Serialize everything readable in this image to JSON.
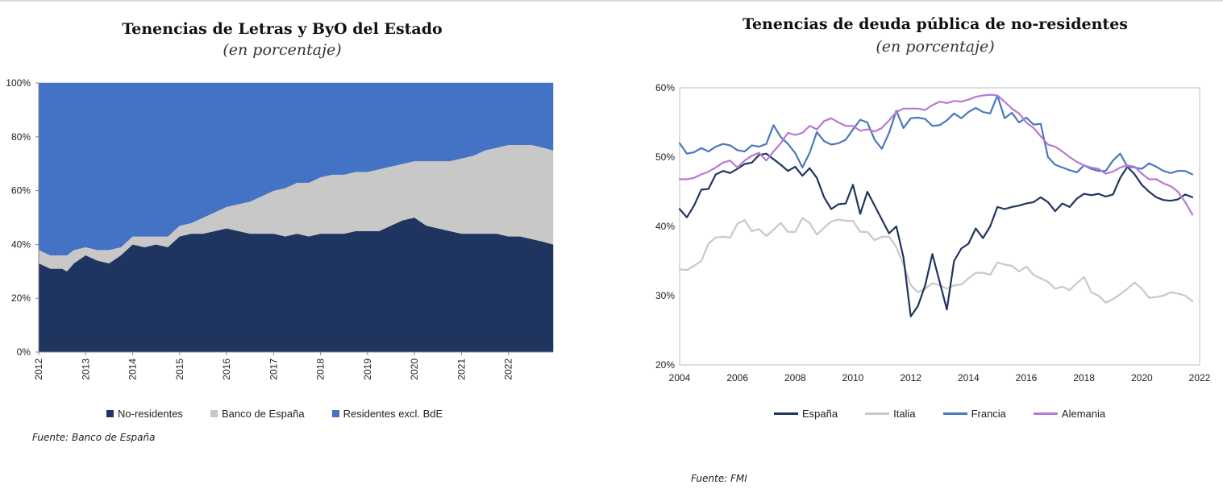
{
  "left": {
    "title": "Tenencias de Letras y ByO del Estado",
    "subtitle": "(en porcentaje)",
    "source": "Fuente: Banco de España"
  },
  "right": {
    "title": "Tenencias de deuda pública de no-residentes",
    "subtitle": "(en porcentaje)",
    "source": "Fuente: FMI"
  },
  "chart_data": [
    {
      "type": "area",
      "stacked": true,
      "title": "Tenencias de Letras y ByO del Estado",
      "subtitle": "(en porcentaje)",
      "xlabel": "",
      "ylabel": "",
      "x_range": [
        2012.0,
        2022.95
      ],
      "ylim": [
        0,
        100
      ],
      "y_ticks": [
        0,
        20,
        40,
        60,
        80,
        100
      ],
      "y_tick_labels": [
        "0%",
        "20%",
        "40%",
        "60%",
        "80%",
        "100%"
      ],
      "x_tick_labels": [
        "2012",
        "2013",
        "2014",
        "2015",
        "2016",
        "2017",
        "2018",
        "2019",
        "2020",
        "2021",
        "2022"
      ],
      "legend_position": "bottom",
      "x": [
        2012.0,
        2012.25,
        2012.5,
        2012.6,
        2012.75,
        2013.0,
        2013.25,
        2013.5,
        2013.75,
        2014.0,
        2014.25,
        2014.5,
        2014.75,
        2015.0,
        2015.25,
        2015.5,
        2015.75,
        2016.0,
        2016.25,
        2016.5,
        2016.75,
        2017.0,
        2017.25,
        2017.5,
        2017.75,
        2018.0,
        2018.25,
        2018.5,
        2018.75,
        2019.0,
        2019.25,
        2019.5,
        2019.75,
        2020.0,
        2020.25,
        2020.5,
        2020.75,
        2021.0,
        2021.25,
        2021.5,
        2021.75,
        2022.0,
        2022.25,
        2022.5,
        2022.75,
        2022.95
      ],
      "series": [
        {
          "name": "No-residentes",
          "color": "#1f3560",
          "values": [
            33,
            31,
            31,
            30,
            33,
            36,
            34,
            33,
            36,
            40,
            39,
            40,
            39,
            43,
            44,
            44,
            45,
            46,
            45,
            44,
            44,
            44,
            43,
            44,
            43,
            44,
            44,
            44,
            45,
            45,
            45,
            47,
            49,
            50,
            47,
            46,
            45,
            44,
            44,
            44,
            44,
            43,
            43,
            42,
            41,
            40
          ]
        },
        {
          "name": "Banco de España",
          "color": "#c8c8c8",
          "values": [
            5,
            5,
            5,
            6,
            5,
            3,
            4,
            5,
            3,
            3,
            4,
            3,
            4,
            4,
            4,
            6,
            7,
            8,
            10,
            12,
            14,
            16,
            18,
            19,
            20,
            21,
            22,
            22,
            22,
            22,
            23,
            22,
            21,
            21,
            24,
            25,
            26,
            28,
            29,
            31,
            32,
            34,
            34,
            35,
            35,
            35
          ]
        },
        {
          "name": "Residentes excl. BdE",
          "color": "#4472c4",
          "values": [
            62,
            64,
            64,
            64,
            62,
            61,
            62,
            62,
            61,
            57,
            57,
            57,
            57,
            53,
            52,
            50,
            48,
            46,
            45,
            44,
            42,
            40,
            39,
            37,
            37,
            35,
            34,
            34,
            33,
            33,
            32,
            31,
            30,
            29,
            29,
            29,
            29,
            28,
            27,
            25,
            24,
            23,
            23,
            23,
            24,
            25
          ]
        }
      ]
    },
    {
      "type": "line",
      "title": "Tenencias de deuda pública de no-residentes",
      "subtitle": "(en porcentaje)",
      "xlabel": "",
      "ylabel": "",
      "x_range": [
        2004,
        2022
      ],
      "ylim": [
        20,
        60
      ],
      "y_ticks": [
        20,
        30,
        40,
        50,
        60
      ],
      "y_tick_labels": [
        "20%",
        "30%",
        "40%",
        "50%",
        "60%"
      ],
      "x_ticks": [
        2004,
        2006,
        2008,
        2010,
        2012,
        2014,
        2016,
        2018,
        2020,
        2022
      ],
      "x_tick_labels": [
        "2004",
        "2006",
        "2008",
        "2010",
        "2012",
        "2014",
        "2016",
        "2018",
        "2020",
        "2022"
      ],
      "legend_position": "bottom",
      "x": [
        2004.0,
        2004.25,
        2004.5,
        2004.75,
        2005.0,
        2005.25,
        2005.5,
        2005.75,
        2006.0,
        2006.25,
        2006.5,
        2006.75,
        2007.0,
        2007.25,
        2007.5,
        2007.75,
        2008.0,
        2008.25,
        2008.5,
        2008.75,
        2009.0,
        2009.25,
        2009.5,
        2009.75,
        2010.0,
        2010.25,
        2010.5,
        2010.75,
        2011.0,
        2011.25,
        2011.5,
        2011.75,
        2012.0,
        2012.25,
        2012.5,
        2012.75,
        2013.0,
        2013.25,
        2013.5,
        2013.75,
        2014.0,
        2014.25,
        2014.5,
        2014.75,
        2015.0,
        2015.25,
        2015.5,
        2015.75,
        2016.0,
        2016.25,
        2016.5,
        2016.75,
        2017.0,
        2017.25,
        2017.5,
        2017.75,
        2018.0,
        2018.25,
        2018.5,
        2018.75,
        2019.0,
        2019.25,
        2019.5,
        2019.75,
        2020.0,
        2020.25,
        2020.5,
        2020.75,
        2021.0,
        2021.25,
        2021.5,
        2021.75
      ],
      "series": [
        {
          "name": "España",
          "color": "#1f3560",
          "values": [
            42.5,
            41.3,
            43.0,
            45.3,
            45.4,
            47.5,
            48.0,
            47.7,
            48.3,
            49.0,
            49.2,
            50.3,
            50.5,
            49.7,
            48.9,
            48.0,
            48.6,
            47.3,
            48.4,
            47.0,
            44.2,
            42.5,
            43.2,
            43.3,
            46.0,
            41.8,
            45.0,
            43.0,
            41.0,
            39.0,
            40.0,
            35.5,
            27.0,
            28.5,
            31.5,
            36.0,
            32.0,
            28.0,
            35.0,
            36.8,
            37.5,
            39.7,
            38.3,
            40.0,
            42.8,
            42.5,
            42.8,
            43.0,
            43.3,
            43.5,
            44.2,
            43.5,
            42.2,
            43.3,
            42.8,
            44.0,
            44.7,
            44.5,
            44.7,
            44.3,
            44.6,
            47.0,
            48.6,
            47.5,
            46.0,
            45.0,
            44.2,
            43.8,
            43.7,
            43.9,
            44.6,
            44.2
          ]
        },
        {
          "name": "Italia",
          "color": "#c8c8c8",
          "values": [
            33.8,
            33.7,
            34.3,
            35.0,
            37.5,
            38.4,
            38.5,
            38.4,
            40.4,
            40.9,
            39.3,
            39.6,
            38.6,
            39.5,
            40.5,
            39.2,
            39.2,
            41.2,
            40.5,
            38.8,
            39.8,
            40.7,
            41.0,
            40.8,
            40.8,
            39.2,
            39.2,
            38.0,
            38.5,
            38.5,
            37.0,
            34.5,
            31.5,
            30.5,
            31.0,
            31.8,
            31.5,
            31.0,
            31.5,
            31.6,
            32.5,
            33.3,
            33.3,
            33.0,
            34.8,
            34.5,
            34.3,
            33.5,
            34.2,
            33.0,
            32.5,
            32.0,
            31.0,
            31.3,
            30.8,
            31.8,
            32.7,
            30.5,
            30.0,
            29.0,
            29.5,
            30.2,
            31.0,
            31.9,
            31.0,
            29.7,
            29.8,
            30.0,
            30.5,
            30.3,
            30.0,
            29.2
          ]
        },
        {
          "name": "Francia",
          "color": "#4a78bd",
          "values": [
            52.0,
            50.5,
            50.7,
            51.3,
            50.8,
            51.5,
            51.9,
            51.7,
            51.0,
            50.8,
            51.7,
            51.5,
            51.9,
            54.6,
            52.9,
            51.9,
            50.6,
            48.5,
            50.6,
            53.6,
            52.3,
            51.8,
            52.0,
            52.5,
            54.0,
            55.4,
            55.0,
            52.5,
            51.2,
            53.5,
            56.7,
            54.2,
            55.6,
            55.7,
            55.5,
            54.5,
            54.6,
            55.3,
            56.3,
            55.6,
            56.5,
            57.1,
            56.5,
            56.3,
            58.9,
            55.6,
            56.4,
            55.0,
            55.7,
            54.7,
            54.8,
            50.0,
            48.9,
            48.5,
            48.1,
            47.8,
            48.8,
            48.3,
            48.0,
            48.0,
            49.5,
            50.5,
            48.6,
            48.5,
            48.3,
            49.1,
            48.6,
            48.0,
            47.7,
            48.0,
            48.0,
            47.5
          ]
        },
        {
          "name": "Alemania",
          "color": "#b878d4",
          "values": [
            46.8,
            46.8,
            47.0,
            47.5,
            47.9,
            48.5,
            49.2,
            49.5,
            48.5,
            49.5,
            50.2,
            50.6,
            49.5,
            50.8,
            52.0,
            53.5,
            53.2,
            53.5,
            54.5,
            54.0,
            55.2,
            55.6,
            55.0,
            54.5,
            54.5,
            53.8,
            54.0,
            53.7,
            54.2,
            55.3,
            56.5,
            57.0,
            57.0,
            57.0,
            56.8,
            57.5,
            58.0,
            57.8,
            58.1,
            58.0,
            58.3,
            58.7,
            58.9,
            59.0,
            58.9,
            58.0,
            57.0,
            56.3,
            55.0,
            54.2,
            53.0,
            51.8,
            51.5,
            50.8,
            50.0,
            49.3,
            48.8,
            48.5,
            48.3,
            47.6,
            47.9,
            48.5,
            48.8,
            48.6,
            47.6,
            46.8,
            46.8,
            46.2,
            45.8,
            45.0,
            43.5,
            41.7
          ]
        }
      ]
    }
  ]
}
